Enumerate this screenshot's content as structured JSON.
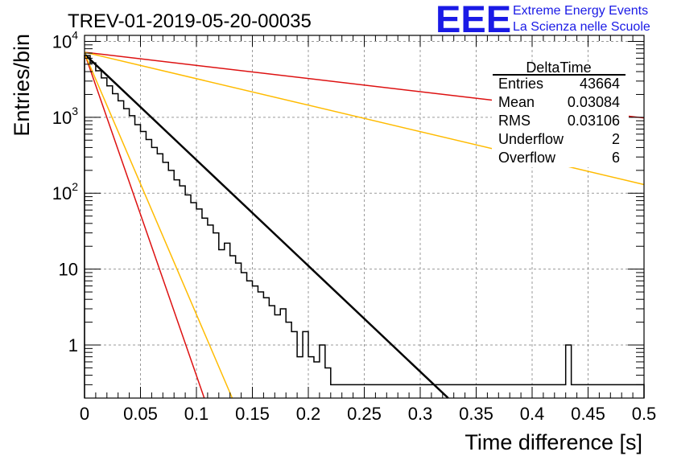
{
  "chart_data": {
    "type": "histogram",
    "title": "TREV-01-2019-05-20-00035",
    "xlabel": "Time difference [s]",
    "ylabel": "Entries/bin",
    "xlim": [
      0,
      0.5
    ],
    "ylim": [
      0.2,
      12000
    ],
    "yscale": "log",
    "grid": true,
    "x_ticks": [
      "0",
      "0.05",
      "0.1",
      "0.15",
      "0.2",
      "0.25",
      "0.3",
      "0.35",
      "0.4",
      "0.45",
      "0.5"
    ],
    "y_ticks": [
      {
        "value": 1,
        "base": "1",
        "exp": ""
      },
      {
        "value": 10,
        "base": "10",
        "exp": ""
      },
      {
        "value": 100,
        "base": "10",
        "exp": "2"
      },
      {
        "value": 1000,
        "base": "10",
        "exp": "3"
      },
      {
        "value": 10000,
        "base": "10",
        "exp": "4"
      }
    ],
    "bin_width": 0.005,
    "histogram_counts": [
      6500,
      5200,
      4100,
      3300,
      2600,
      2050,
      1650,
      1300,
      1050,
      800,
      650,
      510,
      400,
      330,
      255,
      200,
      150,
      125,
      95,
      75,
      62,
      47,
      38,
      30,
      18,
      22,
      15,
      12,
      9,
      7,
      6,
      5,
      4.2,
      3.3,
      2.5,
      3,
      2,
      1.5,
      0.7,
      1.5,
      0.7,
      0.6,
      1,
      0.5,
      0.3,
      0.3,
      0.3,
      0.3,
      0.3,
      0.3,
      0.3,
      0.3,
      0.3,
      0.3,
      0.3,
      0.3,
      0.3,
      0.3,
      0.3,
      0.3,
      0.3,
      0.3,
      0.3,
      0.3,
      0.3,
      0.3,
      0.3,
      0.3,
      0.3,
      0.3,
      0.3,
      0.3,
      0.3,
      0.3,
      0.3,
      0.3,
      0.3,
      0.3,
      0.3,
      0.3,
      0.3,
      0.3,
      0.3,
      0.3,
      0.3,
      0.3,
      1,
      0.3,
      0.3,
      0.3,
      0.3,
      0.3,
      0.3,
      0.3,
      0.3,
      0.3,
      0.3,
      0.3,
      0.3,
      0.3
    ],
    "histogram_counts_note": "",
    "fit_lines": [
      {
        "color": "#000000",
        "width": 2.5,
        "points": [
          [
            0,
            6800
          ],
          [
            0.325,
            0.2
          ]
        ]
      },
      {
        "color": "#dd1111",
        "width": 1.5,
        "points": [
          [
            0,
            7000
          ],
          [
            0.107,
            0.2
          ]
        ]
      },
      {
        "color": "#ffbb00",
        "width": 1.5,
        "points": [
          [
            0,
            7000
          ],
          [
            0.132,
            0.2
          ]
        ]
      },
      {
        "color": "#dd1111",
        "width": 1.5,
        "points": [
          [
            0,
            7200
          ],
          [
            0.5,
            980
          ]
        ]
      },
      {
        "color": "#ffbb00",
        "width": 1.5,
        "points": [
          [
            0,
            7200
          ],
          [
            0.5,
            130
          ]
        ]
      }
    ],
    "stats": {
      "title": "DeltaTime",
      "rows": [
        {
          "label": "Entries",
          "value": "43664"
        },
        {
          "label": "Mean",
          "value": "0.03084"
        },
        {
          "label": "RMS",
          "value": "0.03106"
        },
        {
          "label": "Underflow",
          "value": "2"
        },
        {
          "label": "Overflow",
          "value": "6"
        }
      ]
    }
  },
  "logo": {
    "mark": "EEE",
    "line1": "Extreme Energy Events",
    "line2": "La Scienza nelle Scuole",
    "color": "#1a1ae6"
  },
  "colors": {
    "grid": "#9a9a9a",
    "histogram": "#000000"
  }
}
